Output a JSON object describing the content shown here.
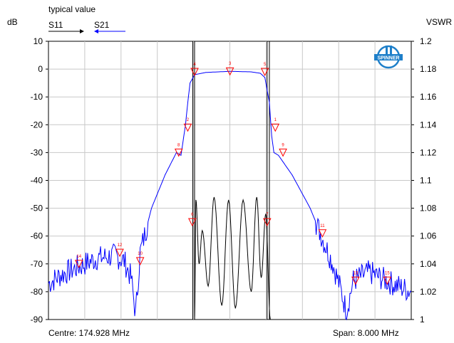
{
  "header": {
    "title": "typical value",
    "left_unit": "dB",
    "right_unit": "VSWR",
    "s11_label": "S11",
    "s21_label": "S21"
  },
  "footer": {
    "centre": "Centre: 174.928 MHz",
    "span": "Span: 8.000 MHz"
  },
  "logo": {
    "text": "SPINNER",
    "color": "#1e7fc9"
  },
  "colors": {
    "s11": "#000000",
    "s21": "#0000ff",
    "marker": "#ff0000",
    "grid": "#c8c8c8"
  },
  "chart_data": {
    "type": "line",
    "x_range_mhz": [
      170.928,
      178.928
    ],
    "y_left": {
      "label": "dB",
      "ticks": [
        10,
        0,
        -10,
        -20,
        -30,
        -40,
        -50,
        -60,
        -70,
        -80,
        -90
      ],
      "range": [
        -90,
        10
      ]
    },
    "y_right": {
      "label": "VSWR",
      "ticks": [
        "1.2",
        "1.18",
        "1.16",
        "1.14",
        "1.12",
        "1.1",
        "1.08",
        "1.06",
        "1.04",
        "1.02",
        "1"
      ],
      "range": [
        1.0,
        1.2
      ]
    },
    "grid": true,
    "series": [
      {
        "name": "S21",
        "color": "#0000ff",
        "points": [
          [
            170.93,
            -77
          ],
          [
            171.2,
            -74
          ],
          [
            171.6,
            -71
          ],
          [
            172.0,
            -68
          ],
          [
            172.4,
            -67
          ],
          [
            172.6,
            -69
          ],
          [
            172.75,
            -75
          ],
          [
            172.85,
            -88
          ],
          [
            172.95,
            -66
          ],
          [
            173.2,
            -50
          ],
          [
            173.5,
            -38
          ],
          [
            173.75,
            -30
          ],
          [
            173.85,
            -31
          ],
          [
            173.95,
            -20
          ],
          [
            174.0,
            -12
          ],
          [
            174.05,
            -5
          ],
          [
            174.15,
            -2
          ],
          [
            174.4,
            -1.2
          ],
          [
            174.93,
            -0.8
          ],
          [
            175.4,
            -1.0
          ],
          [
            175.6,
            -1.5
          ],
          [
            175.7,
            -3
          ],
          [
            175.8,
            -12
          ],
          [
            175.85,
            -24
          ],
          [
            175.9,
            -30
          ],
          [
            176.0,
            -31
          ],
          [
            176.3,
            -38
          ],
          [
            176.7,
            -50
          ],
          [
            177.0,
            -62
          ],
          [
            177.2,
            -70
          ],
          [
            177.35,
            -78
          ],
          [
            177.5,
            -87
          ],
          [
            177.65,
            -76
          ],
          [
            178.0,
            -73
          ],
          [
            178.5,
            -77
          ],
          [
            178.93,
            -80
          ]
        ]
      },
      {
        "name": "S11",
        "color": "#000000",
        "points": [
          [
            174.15,
            -90
          ],
          [
            174.18,
            -47
          ],
          [
            174.25,
            -70
          ],
          [
            174.32,
            -58
          ],
          [
            174.45,
            -78
          ],
          [
            174.58,
            -46
          ],
          [
            174.75,
            -85
          ],
          [
            174.9,
            -47
          ],
          [
            175.05,
            -86
          ],
          [
            175.22,
            -47
          ],
          [
            175.4,
            -80
          ],
          [
            175.52,
            -46
          ],
          [
            175.62,
            -75
          ],
          [
            175.72,
            -52
          ],
          [
            175.82,
            -90
          ]
        ]
      }
    ],
    "markers": [
      {
        "id": "1",
        "x": 175.93,
        "y": -21
      },
      {
        "id": "2",
        "x": 174.0,
        "y": -21
      },
      {
        "id": "3",
        "x": 174.93,
        "y": -0.8
      },
      {
        "id": "4",
        "x": 174.15,
        "y": -1
      },
      {
        "id": "5",
        "x": 175.7,
        "y": -1
      },
      {
        "id": "6",
        "x": 174.1,
        "y": -55
      },
      {
        "id": "7",
        "x": 175.75,
        "y": -55
      },
      {
        "id": "8",
        "x": 173.8,
        "y": -30
      },
      {
        "id": "9",
        "x": 176.1,
        "y": -30
      },
      {
        "id": "10",
        "x": 172.95,
        "y": -69
      },
      {
        "id": "11",
        "x": 176.97,
        "y": -59
      },
      {
        "id": "12",
        "x": 172.5,
        "y": -66
      },
      {
        "id": "13",
        "x": 177.7,
        "y": -76
      },
      {
        "id": "14",
        "x": 171.6,
        "y": -70
      },
      {
        "id": "15",
        "x": 178.4,
        "y": -76
      }
    ],
    "vertical_lines_mhz": [
      174.11,
      175.75,
      174.15,
      175.8
    ]
  }
}
